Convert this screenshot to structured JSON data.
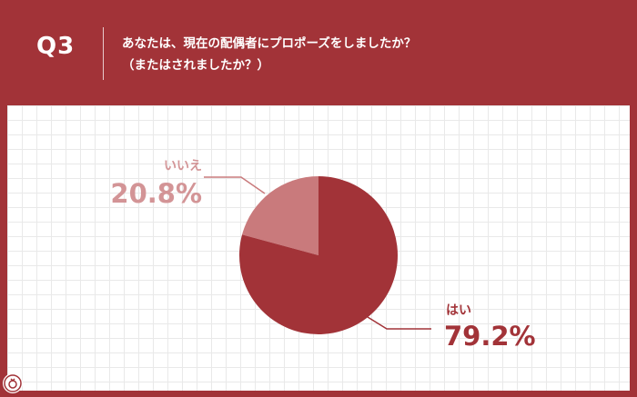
{
  "header": {
    "q_label": "Q3",
    "question_line1": "あなたは、現在の配偶者にプロポーズをしましたか？",
    "question_line2": "（またはされましたか？）"
  },
  "colors": {
    "background": "#a23338",
    "no_slice": "#c97a7c",
    "yes_slice": "#a23338",
    "no_text": "#d39496",
    "yes_text": "#a23338"
  },
  "chart_data": {
    "type": "pie",
    "slices": [
      {
        "label": "いいえ",
        "value": 20.8,
        "value_text": "20.8%"
      },
      {
        "label": "はい",
        "value": 79.2,
        "value_text": "79.2%"
      }
    ]
  }
}
